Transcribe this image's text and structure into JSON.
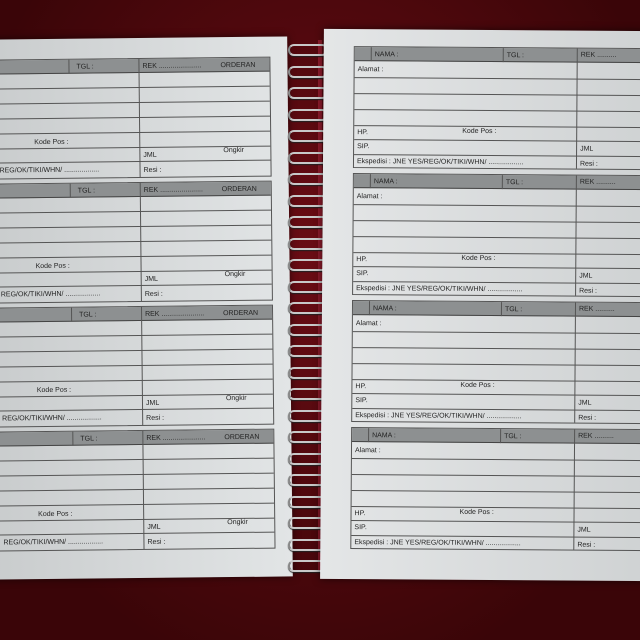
{
  "left_form": {
    "tgl": "TGL :",
    "rek": "REK ......................",
    "orderan": "ORDERAN",
    "kode_pos": "Kode Pos :",
    "jml": "JML",
    "ongkir": "Ongkir",
    "ekspedisi": "REG/OK/TIKI/WHN/ ..................",
    "resi": "Resi :"
  },
  "right_form": {
    "nama": "NAMA :",
    "tgl": "TGL :",
    "rek": "REK ..........",
    "alamat": "Alamat :",
    "hp": "HP.",
    "kode_pos": "Kode Pos :",
    "sip": "SIP.",
    "jml": "JML",
    "ekspedisi": "Ekspedisi : JNE YES/REG/OK/TIKI/WHN/ ..................",
    "resi": "Resi :"
  },
  "form_count_per_page": 4,
  "colors": {
    "background": "#4a0810",
    "paper": "#dfe2e4",
    "header": "#8d9091"
  }
}
